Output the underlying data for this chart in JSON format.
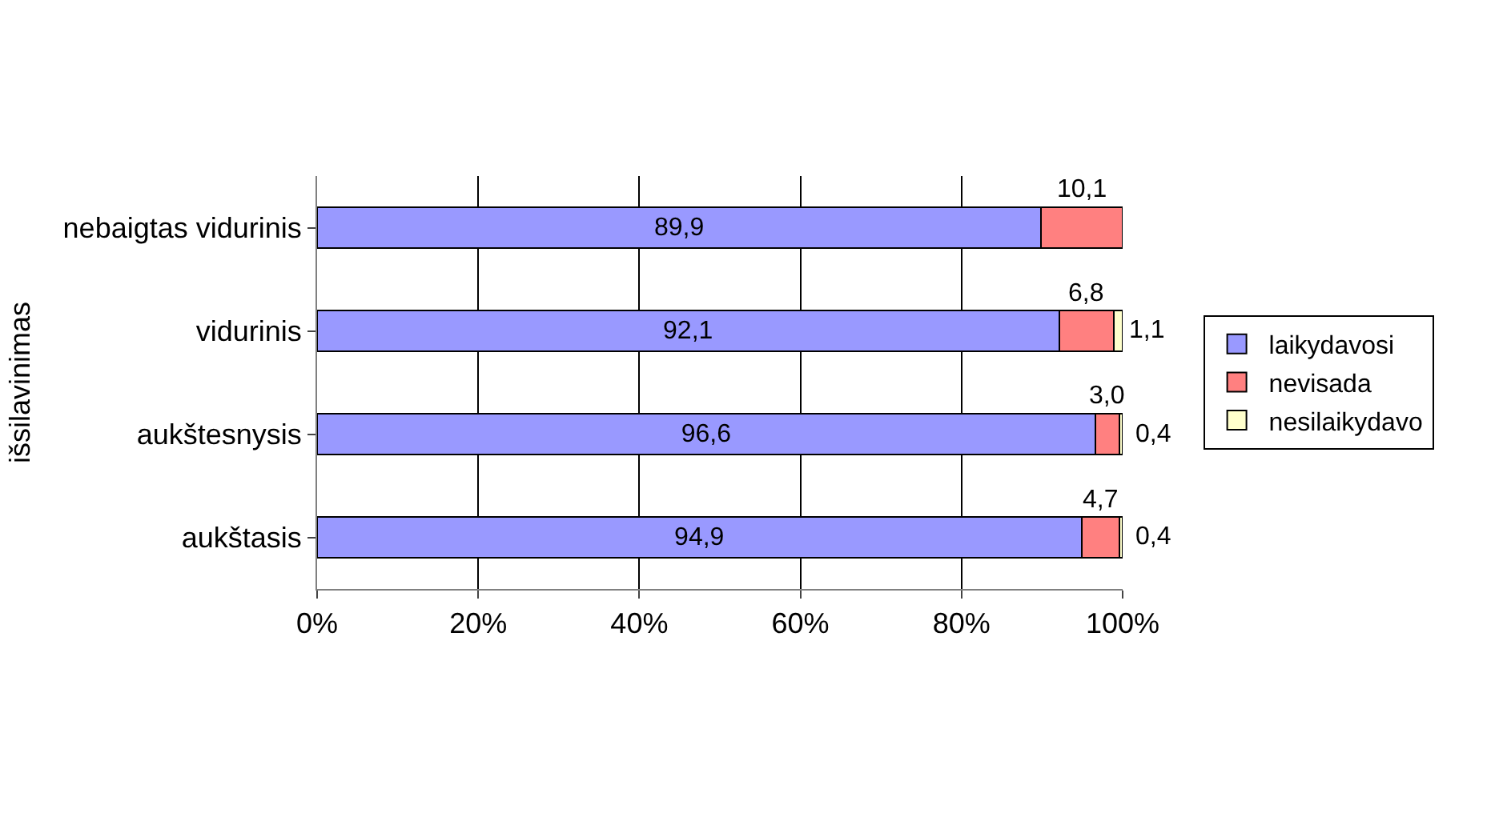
{
  "chart_data": {
    "type": "bar",
    "orientation": "horizontal",
    "stacked": true,
    "ylabel": "išsilavinimas",
    "categories": [
      "nebaigtas vidurinis",
      "vidurinis",
      "aukštesnysis",
      "aukštasis"
    ],
    "series": [
      {
        "name": "laikydavosi",
        "color": "#9999ff",
        "values": [
          89.9,
          92.1,
          96.6,
          94.9
        ],
        "value_labels": [
          "89,9",
          "92,1",
          "96,6",
          "94,9"
        ]
      },
      {
        "name": "nevisada",
        "color": "#ff8080",
        "values": [
          10.1,
          6.8,
          3.0,
          4.7
        ],
        "value_labels": [
          "10,1",
          "6,8",
          "3,0",
          "4,7"
        ]
      },
      {
        "name": "nesilaikydavo",
        "color": "#ffffcc",
        "values": [
          null,
          1.1,
          0.4,
          0.4
        ],
        "value_labels": [
          null,
          "1,1",
          "0,4",
          "0,4"
        ]
      }
    ],
    "xlim": [
      0,
      100
    ],
    "xticks": [
      {
        "value": 0,
        "label": "0%"
      },
      {
        "value": 20,
        "label": "20%"
      },
      {
        "value": 40,
        "label": "40%"
      },
      {
        "value": 60,
        "label": "60%"
      },
      {
        "value": 80,
        "label": "80%"
      },
      {
        "value": 100,
        "label": "100%"
      }
    ],
    "grid": "x",
    "legend": "right"
  }
}
